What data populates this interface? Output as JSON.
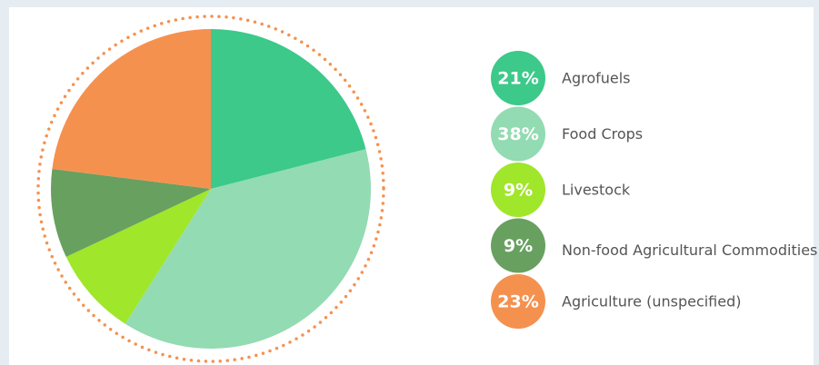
{
  "chart_data": {
    "type": "pie",
    "categories": [
      "Agrofuels",
      "Food Crops",
      "Livestock",
      "Non-food Agricultural Commodities",
      "Agriculture (unspecified)"
    ],
    "values": [
      21,
      38,
      9,
      9,
      23
    ],
    "value_labels": [
      "21%",
      "38%",
      "9%",
      "9%",
      "23%"
    ],
    "colors": [
      "#3cc98a",
      "#93dbb2",
      "#a0e62a",
      "#68a060",
      "#f5914f"
    ]
  }
}
